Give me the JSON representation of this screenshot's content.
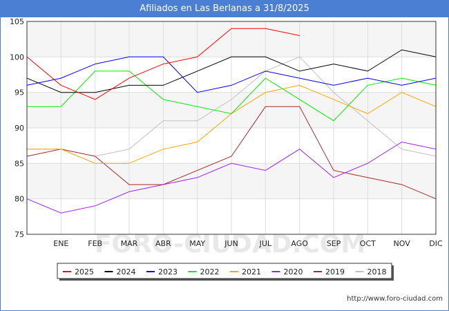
{
  "header": {
    "title": "Afiliados en Las Berlanas a 31/8/2025"
  },
  "footer": {
    "url": "http://www.foro-ciudad.com"
  },
  "watermark": "FORO-CIUDAD.COM",
  "chart_data": {
    "type": "line",
    "title": "Afiliados en Las Berlanas a 31/8/2025",
    "xlabel": "",
    "ylabel": "",
    "categories": [
      "",
      "ENE",
      "FEB",
      "MAR",
      "ABR",
      "MAY",
      "JUN",
      "JUL",
      "AGO",
      "SEP",
      "OCT",
      "NOV",
      "DIC"
    ],
    "ylim": [
      75,
      105
    ],
    "yticks": [
      75,
      80,
      85,
      90,
      95,
      100,
      105
    ],
    "grid": true,
    "legend_position": "bottom",
    "series": [
      {
        "name": "2025",
        "color": "#ff0000",
        "values": [
          100,
          96,
          94,
          97,
          99,
          100,
          104,
          104,
          103,
          null,
          null,
          null,
          null
        ]
      },
      {
        "name": "2024",
        "color": "#000000",
        "values": [
          97,
          95,
          95,
          96,
          96,
          98,
          100,
          100,
          98,
          99,
          98,
          101,
          100
        ]
      },
      {
        "name": "2023",
        "color": "#0000ff",
        "values": [
          96,
          97,
          99,
          100,
          100,
          95,
          96,
          98,
          97,
          96,
          97,
          96,
          97
        ]
      },
      {
        "name": "2022",
        "color": "#00ee00",
        "values": [
          93,
          93,
          98,
          98,
          94,
          93,
          92,
          97,
          94,
          91,
          96,
          97,
          96
        ]
      },
      {
        "name": "2021",
        "color": "#ffa500",
        "values": [
          87,
          87,
          85,
          85,
          87,
          88,
          92,
          95,
          96,
          94,
          92,
          95,
          93
        ]
      },
      {
        "name": "2020",
        "color": "#a020f0",
        "values": [
          80,
          78,
          79,
          81,
          82,
          83,
          85,
          84,
          87,
          83,
          85,
          88,
          87
        ]
      },
      {
        "name": "2019",
        "color": "#a52a2a",
        "values": [
          86,
          87,
          86,
          82,
          82,
          84,
          86,
          93,
          93,
          84,
          83,
          82,
          80
        ]
      },
      {
        "name": "2018",
        "color": "#c0c0c0",
        "values": [
          87,
          87,
          86,
          87,
          91,
          91,
          94,
          98,
          100,
          95,
          91,
          87,
          86
        ]
      }
    ]
  }
}
